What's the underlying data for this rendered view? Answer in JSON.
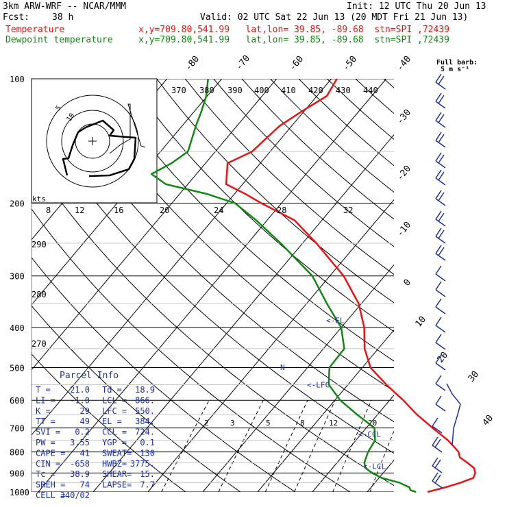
{
  "header": {
    "model": "3km ARW-WRF -- NCAR/MMM",
    "init": "Init: 12 UTC Thu 20 Jun 13",
    "fcst_label": "Fcst:",
    "fcst_value": "38 h",
    "valid": "Valid: 02 UTC Sat 22 Jun 13 (20 MDT Fri 21 Jun 13)",
    "temp_label": "Temperature",
    "dew_label": "Dewpoint temperature",
    "location": "x,y=709.80,541.99   lat,lon= 39.85, -89.68  stn=SPI ,72439"
  },
  "colors": {
    "temperature": "#ee1111",
    "dewpoint": "#118811",
    "wind": "#1a2ea8",
    "text": "#000000"
  },
  "chart_data": {
    "type": "line",
    "y_axis": "pressure (hPa), logarithmic",
    "ylim": [
      1000,
      100
    ],
    "pressure_ticks": [
      "100",
      "200",
      "300",
      "400",
      "500",
      "600",
      "700",
      "800",
      "900",
      "1000"
    ],
    "isotherm_labels": [
      "-80",
      "-70",
      "-60",
      "-50",
      "-40",
      "-30",
      "-20",
      "-10",
      "0",
      "10",
      "20",
      "30",
      "40"
    ],
    "theta_labels": [
      "370",
      "380",
      "390",
      "400",
      "410",
      "420",
      "430",
      "440",
      "290",
      "280",
      "270"
    ],
    "mixing_ratio_labels": [
      "2",
      "3",
      "5",
      "8",
      "12",
      "20"
    ],
    "hodo_speed_labels": [
      "8",
      "12",
      "16",
      "20",
      "24",
      "28",
      "32"
    ],
    "hodo_units": "kts",
    "hodo_ring_labels": [
      "5",
      "10"
    ],
    "barb_legend": "Full barb:\n5 m s⁻¹",
    "level_markers": [
      {
        "label": "<-EL",
        "p": 384
      },
      {
        "label": "<-LFC",
        "p": 550
      },
      {
        "label": "<-CCL",
        "p": 724
      },
      {
        "label": "<-LCL",
        "p": 866
      }
    ],
    "series": [
      {
        "name": "Temperature",
        "p": [
          1000,
          975,
          950,
          925,
          900,
          875,
          850,
          825,
          800,
          775,
          750,
          725,
          700,
          650,
          600,
          550,
          500,
          450,
          400,
          350,
          300,
          250,
          220,
          200,
          190,
          180,
          160,
          150,
          140,
          130,
          120,
          110,
          100
        ],
        "t": [
          21,
          23.5,
          25.6,
          27.2,
          26.8,
          25.8,
          23.8,
          21.6,
          20.5,
          18.7,
          16.8,
          14.5,
          12.1,
          7.2,
          2.5,
          -3,
          -8.5,
          -12.5,
          -15.8,
          -20.5,
          -27.5,
          -37.5,
          -45,
          -53.7,
          -58,
          -63,
          -66,
          -63.3,
          -62.8,
          -62.2,
          -60.4,
          -58.2,
          -59
        ]
      },
      {
        "name": "Dewpoint temperature",
        "p": [
          1000,
          990,
          975,
          950,
          925,
          900,
          875,
          850,
          800,
          750,
          700,
          650,
          600,
          550,
          500,
          450,
          400,
          350,
          300,
          250,
          220,
          200,
          190,
          180,
          170,
          160,
          150,
          140,
          130,
          120,
          110,
          100
        ],
        "t": [
          18.9,
          17.6,
          17,
          14.5,
          10.5,
          8,
          6,
          5,
          4,
          3.5,
          1.5,
          -3.7,
          -9,
          -13.5,
          -16,
          -16.2,
          -20,
          -26.3,
          -33.2,
          -44,
          -52,
          -58.5,
          -65,
          -74,
          -78.2,
          -76.2,
          -75,
          -76.2,
          -77.5,
          -78.7,
          -80.2,
          -82.5
        ]
      }
    ]
  },
  "parcel_info": {
    "title": "Parcel Info",
    "rows": [
      [
        "T  =",
        "21.0",
        "Td =",
        "18.9"
      ],
      [
        "LI =",
        "-1.0",
        "LCL =",
        "866."
      ],
      [
        "K  =",
        "29",
        "LFC =",
        "550."
      ],
      [
        "TT =",
        "49",
        "EL  =",
        "384."
      ],
      [
        "SVI =",
        "0.2",
        "CCL =",
        "724."
      ],
      [
        "PW =",
        "3.55",
        "YGP =",
        "0.1"
      ],
      [
        "CAPE =",
        "41",
        "SWEAT=",
        "130"
      ],
      [
        "CIN =",
        "-658",
        "HWBZ=",
        "3775."
      ],
      [
        "Tc =",
        "38.9",
        "SHEAR=",
        "15."
      ],
      [
        "SREH =",
        "74",
        "LAPSE=",
        "7.7"
      ],
      [
        "CELL =",
        "340/02",
        "",
        ""
      ]
    ]
  }
}
